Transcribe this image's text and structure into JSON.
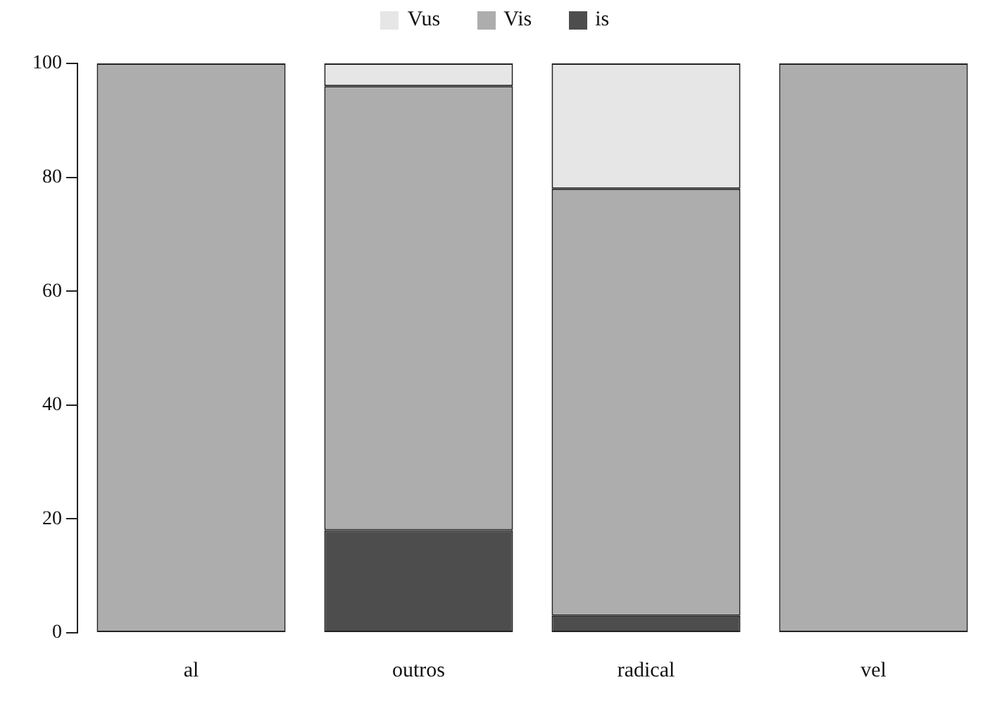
{
  "chart_data": {
    "type": "bar",
    "stacked": true,
    "categories": [
      "al",
      "outros",
      "radical",
      "vel"
    ],
    "series": [
      {
        "name": "is",
        "color": "#4d4d4d",
        "values": [
          0,
          18,
          3,
          0
        ]
      },
      {
        "name": "Vis",
        "color": "#adadad",
        "values": [
          100,
          78,
          75,
          100
        ]
      },
      {
        "name": "Vus",
        "color": "#e6e6e6",
        "values": [
          0,
          4,
          22,
          0
        ]
      }
    ],
    "ylim": [
      0,
      100
    ],
    "yticks": [
      0,
      20,
      40,
      60,
      80,
      100
    ],
    "grid": false,
    "legend": "top"
  }
}
